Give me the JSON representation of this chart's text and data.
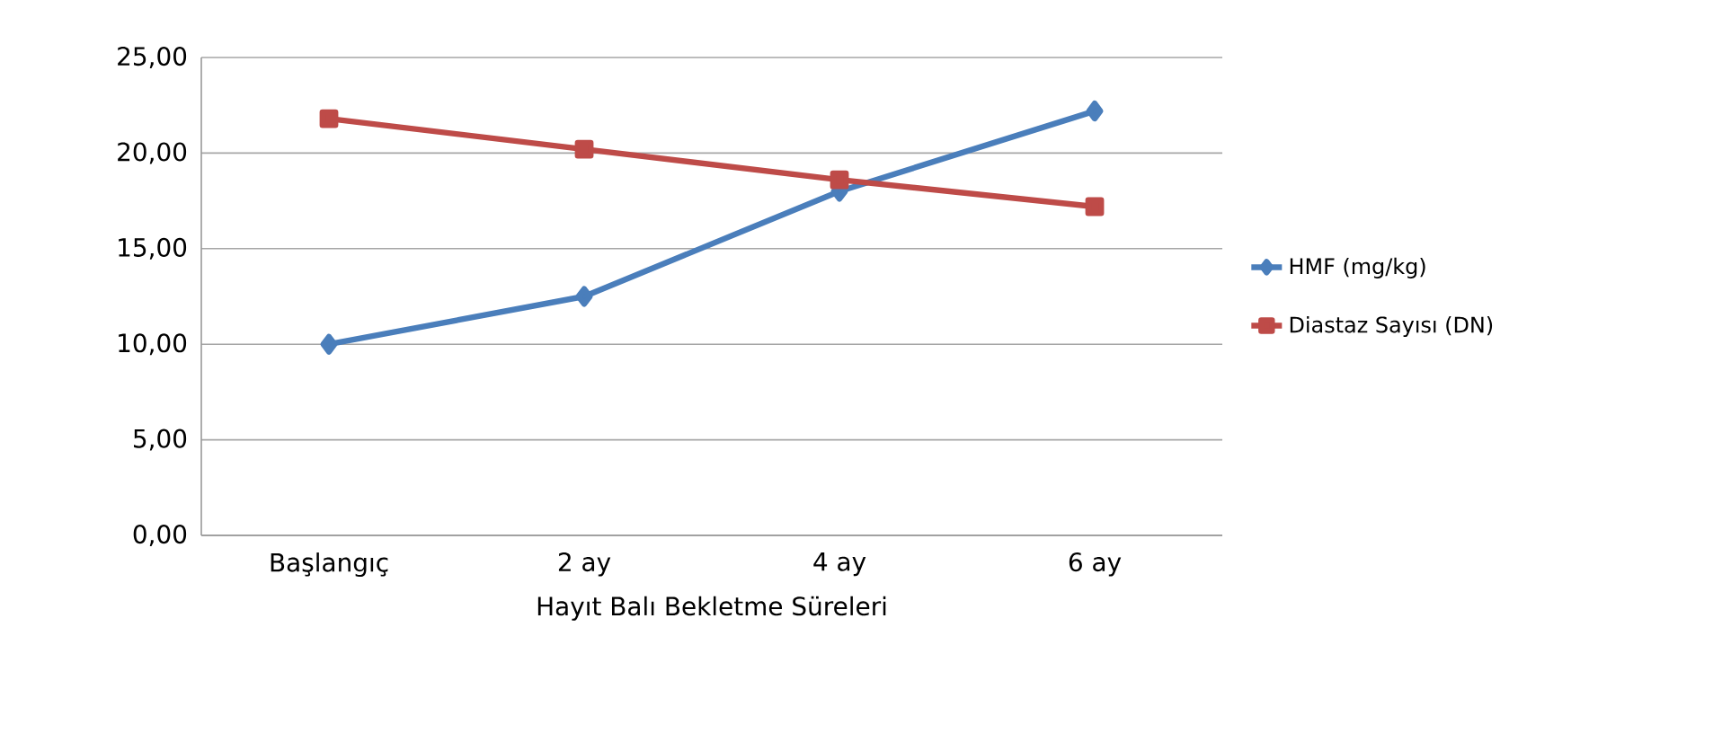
{
  "chart_data": {
    "type": "line",
    "xlabel": "Hayıt Balı Bekletme Süreleri",
    "categories": [
      "Başlangıç",
      "2 ay",
      "4 ay",
      "6 ay"
    ],
    "series": [
      {
        "name": "HMF (mg/kg)",
        "color": "#4a7ebb",
        "marker": "diamond",
        "values": [
          10.0,
          12.5,
          18.0,
          22.2
        ]
      },
      {
        "name": "Diastaz Sayısı (DN)",
        "color": "#be4b48",
        "marker": "square",
        "values": [
          21.8,
          20.2,
          18.6,
          17.2
        ]
      }
    ],
    "ylim": [
      0,
      25
    ],
    "yticks": [
      {
        "value": 0,
        "label": "0,00"
      },
      {
        "value": 5,
        "label": "5,00"
      },
      {
        "value": 10,
        "label": "10,00"
      },
      {
        "value": 15,
        "label": "15,00"
      },
      {
        "value": 20,
        "label": "20,00"
      },
      {
        "value": 25,
        "label": "25,00"
      }
    ],
    "grid": "y",
    "legend": "right",
    "line_style": "solid"
  }
}
